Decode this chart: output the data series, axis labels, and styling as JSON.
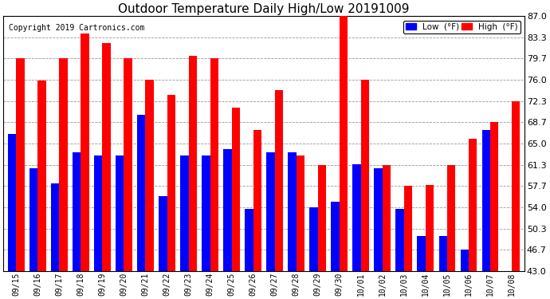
{
  "title": "Outdoor Temperature Daily High/Low 20191009",
  "copyright": "Copyright 2019 Cartronics.com",
  "legend_low": "Low  (°F)",
  "legend_high": "High  (°F)",
  "dates": [
    "09/15",
    "09/16",
    "09/17",
    "09/18",
    "09/19",
    "09/20",
    "09/21",
    "09/22",
    "09/23",
    "09/24",
    "09/25",
    "09/26",
    "09/27",
    "09/28",
    "09/29",
    "09/30",
    "10/01",
    "10/02",
    "10/03",
    "10/04",
    "10/05",
    "10/06",
    "10/07",
    "10/08"
  ],
  "high": [
    79.7,
    75.9,
    79.7,
    84.0,
    82.4,
    79.7,
    76.0,
    73.4,
    80.1,
    79.7,
    71.2,
    67.3,
    74.3,
    63.0,
    61.3,
    87.0,
    76.0,
    61.3,
    57.7,
    57.9,
    61.3,
    65.8,
    68.7,
    72.3
  ],
  "low": [
    66.7,
    60.8,
    58.1,
    63.5,
    63.0,
    63.0,
    70.0,
    56.0,
    63.0,
    63.0,
    64.0,
    53.8,
    63.5,
    63.5,
    54.0,
    55.0,
    61.5,
    60.8,
    53.8,
    49.0,
    49.0,
    46.7,
    67.4,
    43.0
  ],
  "ylim_min": 43.0,
  "ylim_max": 87.0,
  "yticks": [
    43.0,
    46.7,
    50.3,
    54.0,
    57.7,
    61.3,
    65.0,
    68.7,
    72.3,
    76.0,
    79.7,
    83.3,
    87.0
  ],
  "bar_width": 0.38,
  "high_color": "#FF0000",
  "low_color": "#0000FF",
  "bg_color": "#FFFFFF",
  "grid_color": "#999999",
  "title_fontsize": 11,
  "copyright_fontsize": 7,
  "tick_fontsize": 7,
  "ytick_fontsize": 8
}
